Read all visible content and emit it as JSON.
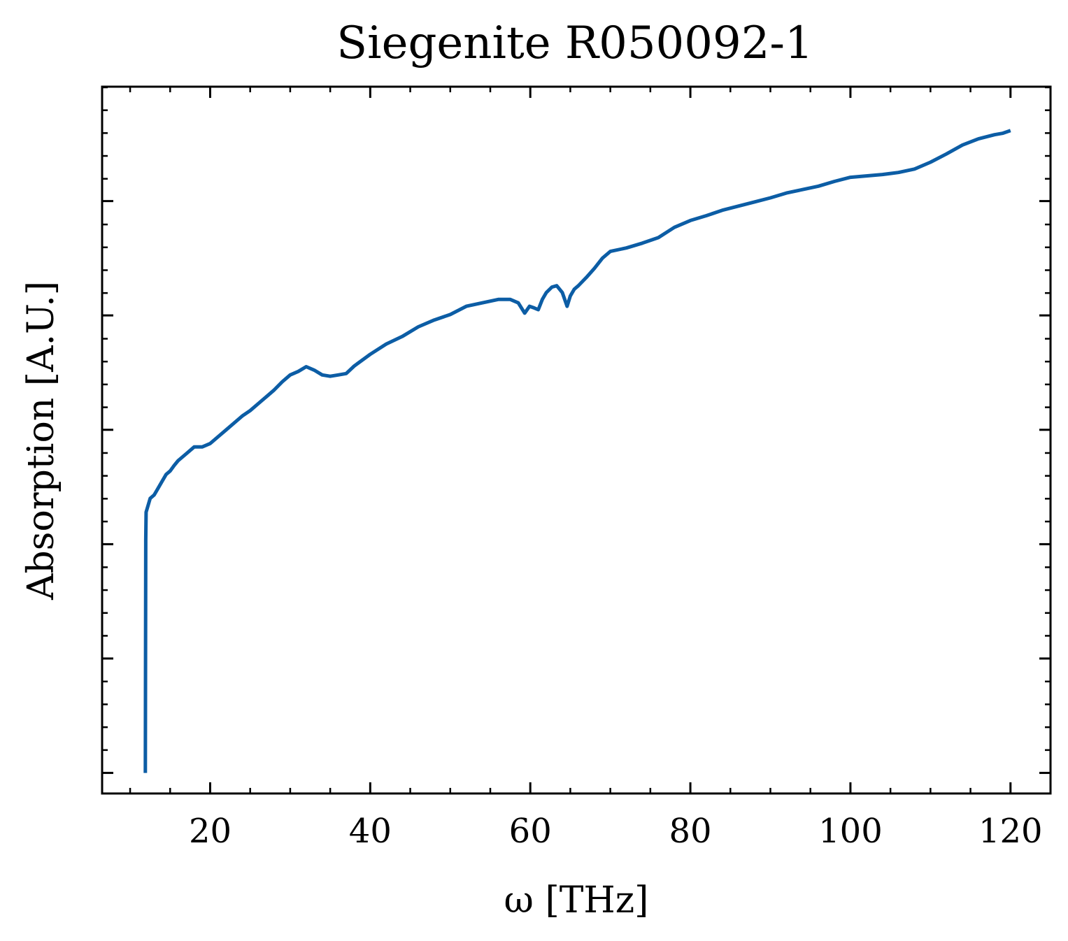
{
  "chart_data": {
    "type": "line",
    "title": "Siegenite R050092-1",
    "xlabel": "ω [THz]",
    "ylabel": "Absorption [A.U.]",
    "xlim": [
      6.5,
      125
    ],
    "ylim": [
      -0.03,
      1.0
    ],
    "x_ticks": [
      20,
      40,
      60,
      80,
      100,
      120
    ],
    "x_minor_step": 5,
    "y_ticks": [
      0.0,
      0.1667,
      0.3333,
      0.5,
      0.6667,
      0.8333
    ],
    "y_minor_step": 0.0333,
    "y_tick_labels_shown": false,
    "grid": false,
    "legend": "none",
    "series": [
      {
        "color": "#0C5DA5",
        "x": [
          11.9,
          11.95,
          12.0,
          12.5,
          13.0,
          13.5,
          14.0,
          14.5,
          15.0,
          15.5,
          16.0,
          17.0,
          18.0,
          19.0,
          20.0,
          21.0,
          22.0,
          23.0,
          24.0,
          25.0,
          26.0,
          27.0,
          28.0,
          29.0,
          30.0,
          31.0,
          32.0,
          33.0,
          34.0,
          35.0,
          36.0,
          37.0,
          38.0,
          40.0,
          42.0,
          44.0,
          46.0,
          48.0,
          50.0,
          52.0,
          54.0,
          56.0,
          57.5,
          58.5,
          59.3,
          59.9,
          60.4,
          61.0,
          61.5,
          62.0,
          62.7,
          63.3,
          64.0,
          64.6,
          65.0,
          65.5,
          66.0,
          67.0,
          68.0,
          69.0,
          70.0,
          72.0,
          74.0,
          76.0,
          78.0,
          80.0,
          82.0,
          84.0,
          86.0,
          88.0,
          90.0,
          92.0,
          94.0,
          96.0,
          98.0,
          100.0,
          102.0,
          104.0,
          106.0,
          108.0,
          110.0,
          112.0,
          114.0,
          116.0,
          118.0,
          119.0,
          120.0
        ],
        "y": [
          0.0,
          0.34,
          0.38,
          0.4,
          0.405,
          0.415,
          0.425,
          0.435,
          0.44,
          0.448,
          0.455,
          0.465,
          0.475,
          0.475,
          0.48,
          0.49,
          0.5,
          0.51,
          0.52,
          0.528,
          0.538,
          0.548,
          0.558,
          0.57,
          0.58,
          0.585,
          0.592,
          0.587,
          0.58,
          0.578,
          0.58,
          0.582,
          0.593,
          0.61,
          0.625,
          0.636,
          0.65,
          0.66,
          0.668,
          0.68,
          0.685,
          0.69,
          0.69,
          0.685,
          0.67,
          0.68,
          0.678,
          0.675,
          0.69,
          0.7,
          0.708,
          0.71,
          0.7,
          0.68,
          0.695,
          0.705,
          0.71,
          0.722,
          0.735,
          0.75,
          0.76,
          0.765,
          0.772,
          0.78,
          0.795,
          0.805,
          0.812,
          0.82,
          0.826,
          0.832,
          0.838,
          0.845,
          0.85,
          0.855,
          0.862,
          0.868,
          0.87,
          0.872,
          0.875,
          0.88,
          0.89,
          0.902,
          0.915,
          0.924,
          0.93,
          0.932,
          0.936
        ]
      }
    ]
  }
}
